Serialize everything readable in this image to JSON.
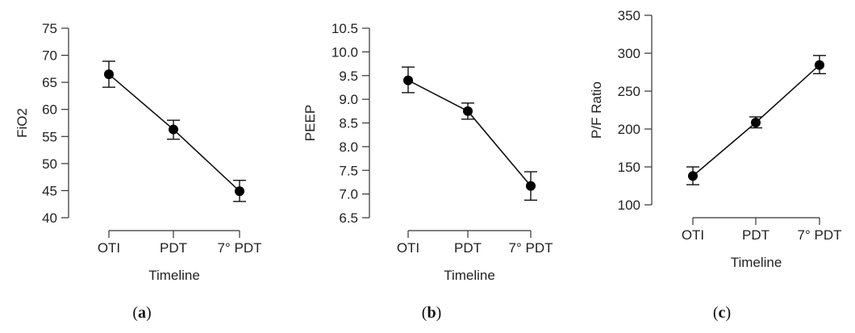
{
  "chart_data": [
    {
      "type": "line",
      "panel_label": "a",
      "categories": [
        "OTI",
        "PDT",
        "7° PDT"
      ],
      "values": [
        66.5,
        56.3,
        44.9
      ],
      "error_low": [
        64.1,
        54.5,
        43.0
      ],
      "error_high": [
        68.9,
        58.0,
        46.9
      ],
      "ylabel": "FiO2",
      "xlabel": "Timeline",
      "ylim": [
        40,
        75
      ],
      "yticks": [
        40,
        45,
        50,
        55,
        60,
        65,
        70,
        75
      ],
      "ytick_labels": [
        "40",
        "45",
        "50",
        "55",
        "60",
        "65",
        "70",
        "75"
      ]
    },
    {
      "type": "line",
      "panel_label": "b",
      "categories": [
        "OTI",
        "PDT",
        "7° PDT"
      ],
      "values": [
        9.4,
        8.75,
        7.17
      ],
      "error_low": [
        9.14,
        8.58,
        6.87
      ],
      "error_high": [
        9.68,
        8.92,
        7.47
      ],
      "ylabel": "PEEP",
      "xlabel": "Timeline",
      "ylim": [
        6.5,
        10.5
      ],
      "yticks": [
        6.5,
        7.0,
        7.5,
        8.0,
        8.5,
        9.0,
        9.5,
        10.0,
        10.5
      ],
      "ytick_labels": [
        "6.5",
        "7.0",
        "7.5",
        "8.0",
        "8.5",
        "9.0",
        "9.5",
        "10.0",
        "10.5"
      ]
    },
    {
      "type": "line",
      "panel_label": "c",
      "categories": [
        "OTI",
        "PDT",
        "7° PDT"
      ],
      "values": [
        138,
        208.5,
        284.5
      ],
      "error_low": [
        126.5,
        201.5,
        273
      ],
      "error_high": [
        150,
        216,
        297
      ],
      "ylabel": "P/F Ratio",
      "xlabel": "Timeline",
      "ylim": [
        100,
        350
      ],
      "yticks": [
        100,
        150,
        200,
        250,
        300,
        350
      ],
      "ytick_labels": [
        "100",
        "150",
        "200",
        "250",
        "300",
        "350"
      ]
    }
  ]
}
